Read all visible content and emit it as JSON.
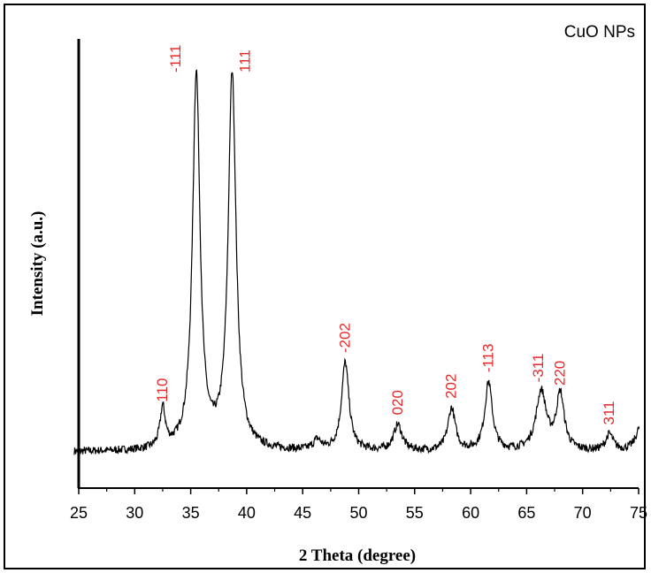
{
  "chart_data": {
    "type": "line",
    "title": "",
    "xlabel": "2 Theta (degree)",
    "ylabel": "Intensity (a.u.)",
    "xlim": [
      25,
      75
    ],
    "x_ticks": [
      "25",
      "30",
      "35",
      "40",
      "45",
      "50",
      "55",
      "60",
      "65",
      "70",
      "75"
    ],
    "y_ticks": [],
    "legend": "CuO NPs",
    "legend_position": "top-right",
    "grid": false,
    "baseline_intensity": 0.05,
    "noise_amplitude": 0.012,
    "series": [
      {
        "name": "CuO NPs",
        "color": "#000000",
        "peaks": [
          {
            "two_theta": 32.5,
            "intensity": 0.12,
            "hwhm": 0.28,
            "label": "110"
          },
          {
            "two_theta": 35.5,
            "intensity": 1.15,
            "hwhm": 0.4,
            "label": "-111"
          },
          {
            "two_theta": 38.7,
            "intensity": 1.15,
            "hwhm": 0.42,
            "label": "111"
          },
          {
            "two_theta": 46.3,
            "intensity": 0.03,
            "hwhm": 0.4,
            "label": ""
          },
          {
            "two_theta": 48.8,
            "intensity": 0.27,
            "hwhm": 0.4,
            "label": "-202"
          },
          {
            "two_theta": 53.5,
            "intensity": 0.08,
            "hwhm": 0.45,
            "label": "020"
          },
          {
            "two_theta": 58.3,
            "intensity": 0.13,
            "hwhm": 0.4,
            "label": "202"
          },
          {
            "two_theta": 61.6,
            "intensity": 0.21,
            "hwhm": 0.4,
            "label": "-113"
          },
          {
            "two_theta": 66.3,
            "intensity": 0.18,
            "hwhm": 0.55,
            "label": "-311"
          },
          {
            "two_theta": 68.0,
            "intensity": 0.17,
            "hwhm": 0.42,
            "label": "220"
          },
          {
            "two_theta": 72.4,
            "intensity": 0.05,
            "hwhm": 0.4,
            "label": "311"
          },
          {
            "two_theta": 75.2,
            "intensity": 0.08,
            "hwhm": 0.5,
            "label": ""
          }
        ]
      }
    ],
    "label_color": "#e8292a"
  }
}
